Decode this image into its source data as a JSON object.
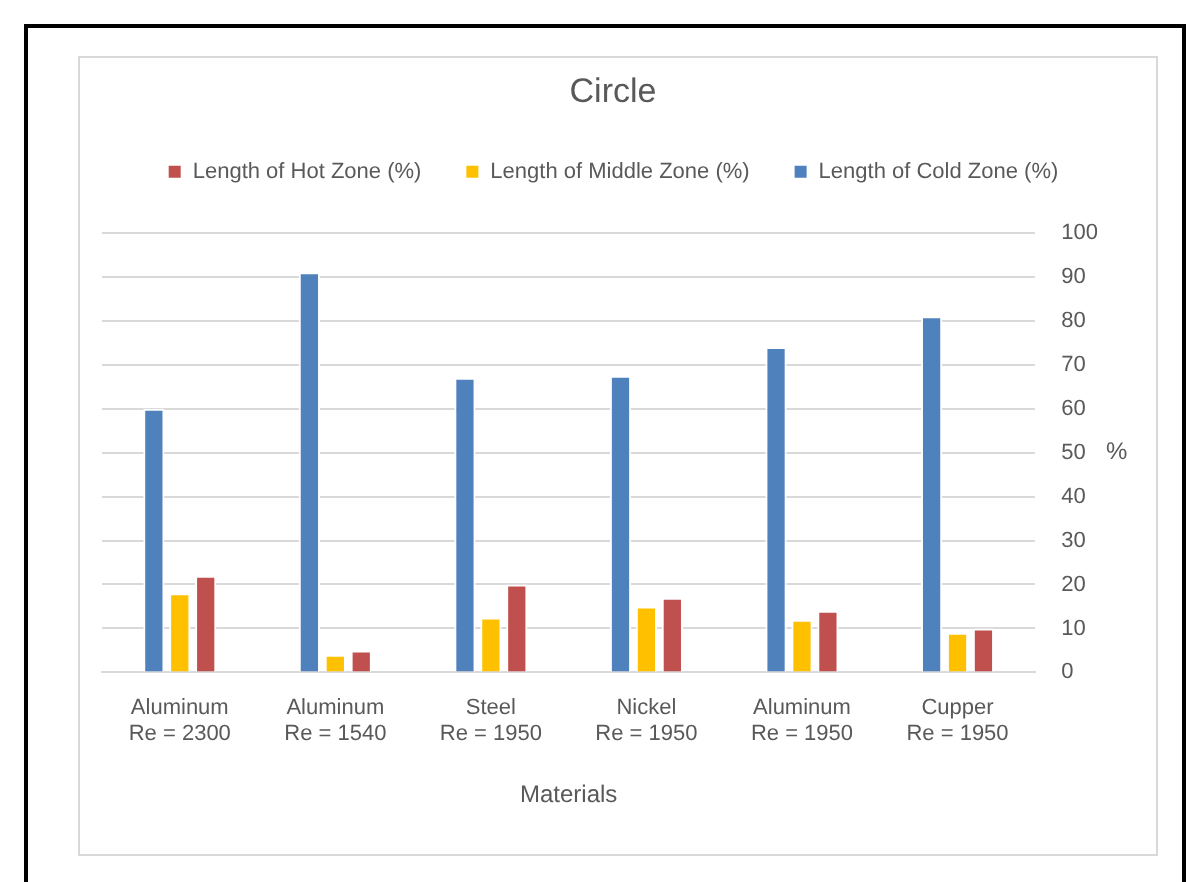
{
  "chart_data": {
    "type": "bar",
    "title": "Circle",
    "xlabel": "Materials",
    "ylabel": "%",
    "categories": [
      "Aluminum\nRe = 2300",
      "Aluminum\nRe = 1540",
      "Steel\nRe = 1950",
      "Nickel\nRe = 1950",
      "Aluminum\nRe = 1950",
      "Cupper\nRe = 1950"
    ],
    "series": [
      {
        "name": "Length of Cold Zone (%)",
        "color": "#4f81bd",
        "values": [
          60,
          91,
          67,
          67.5,
          74,
          81
        ]
      },
      {
        "name": "Length of Middle Zone (%)",
        "color": "#ffc000",
        "values": [
          18,
          4,
          12.5,
          15,
          12,
          9
        ]
      },
      {
        "name": "Length of Hot Zone (%)",
        "color": "#c0504d",
        "values": [
          22,
          5,
          20,
          17,
          14,
          10
        ]
      }
    ],
    "ylim": [
      0,
      100
    ],
    "yticks": [
      0,
      10,
      20,
      30,
      40,
      50,
      60,
      70,
      80,
      90,
      100
    ],
    "grid": "y",
    "legend": "top"
  }
}
